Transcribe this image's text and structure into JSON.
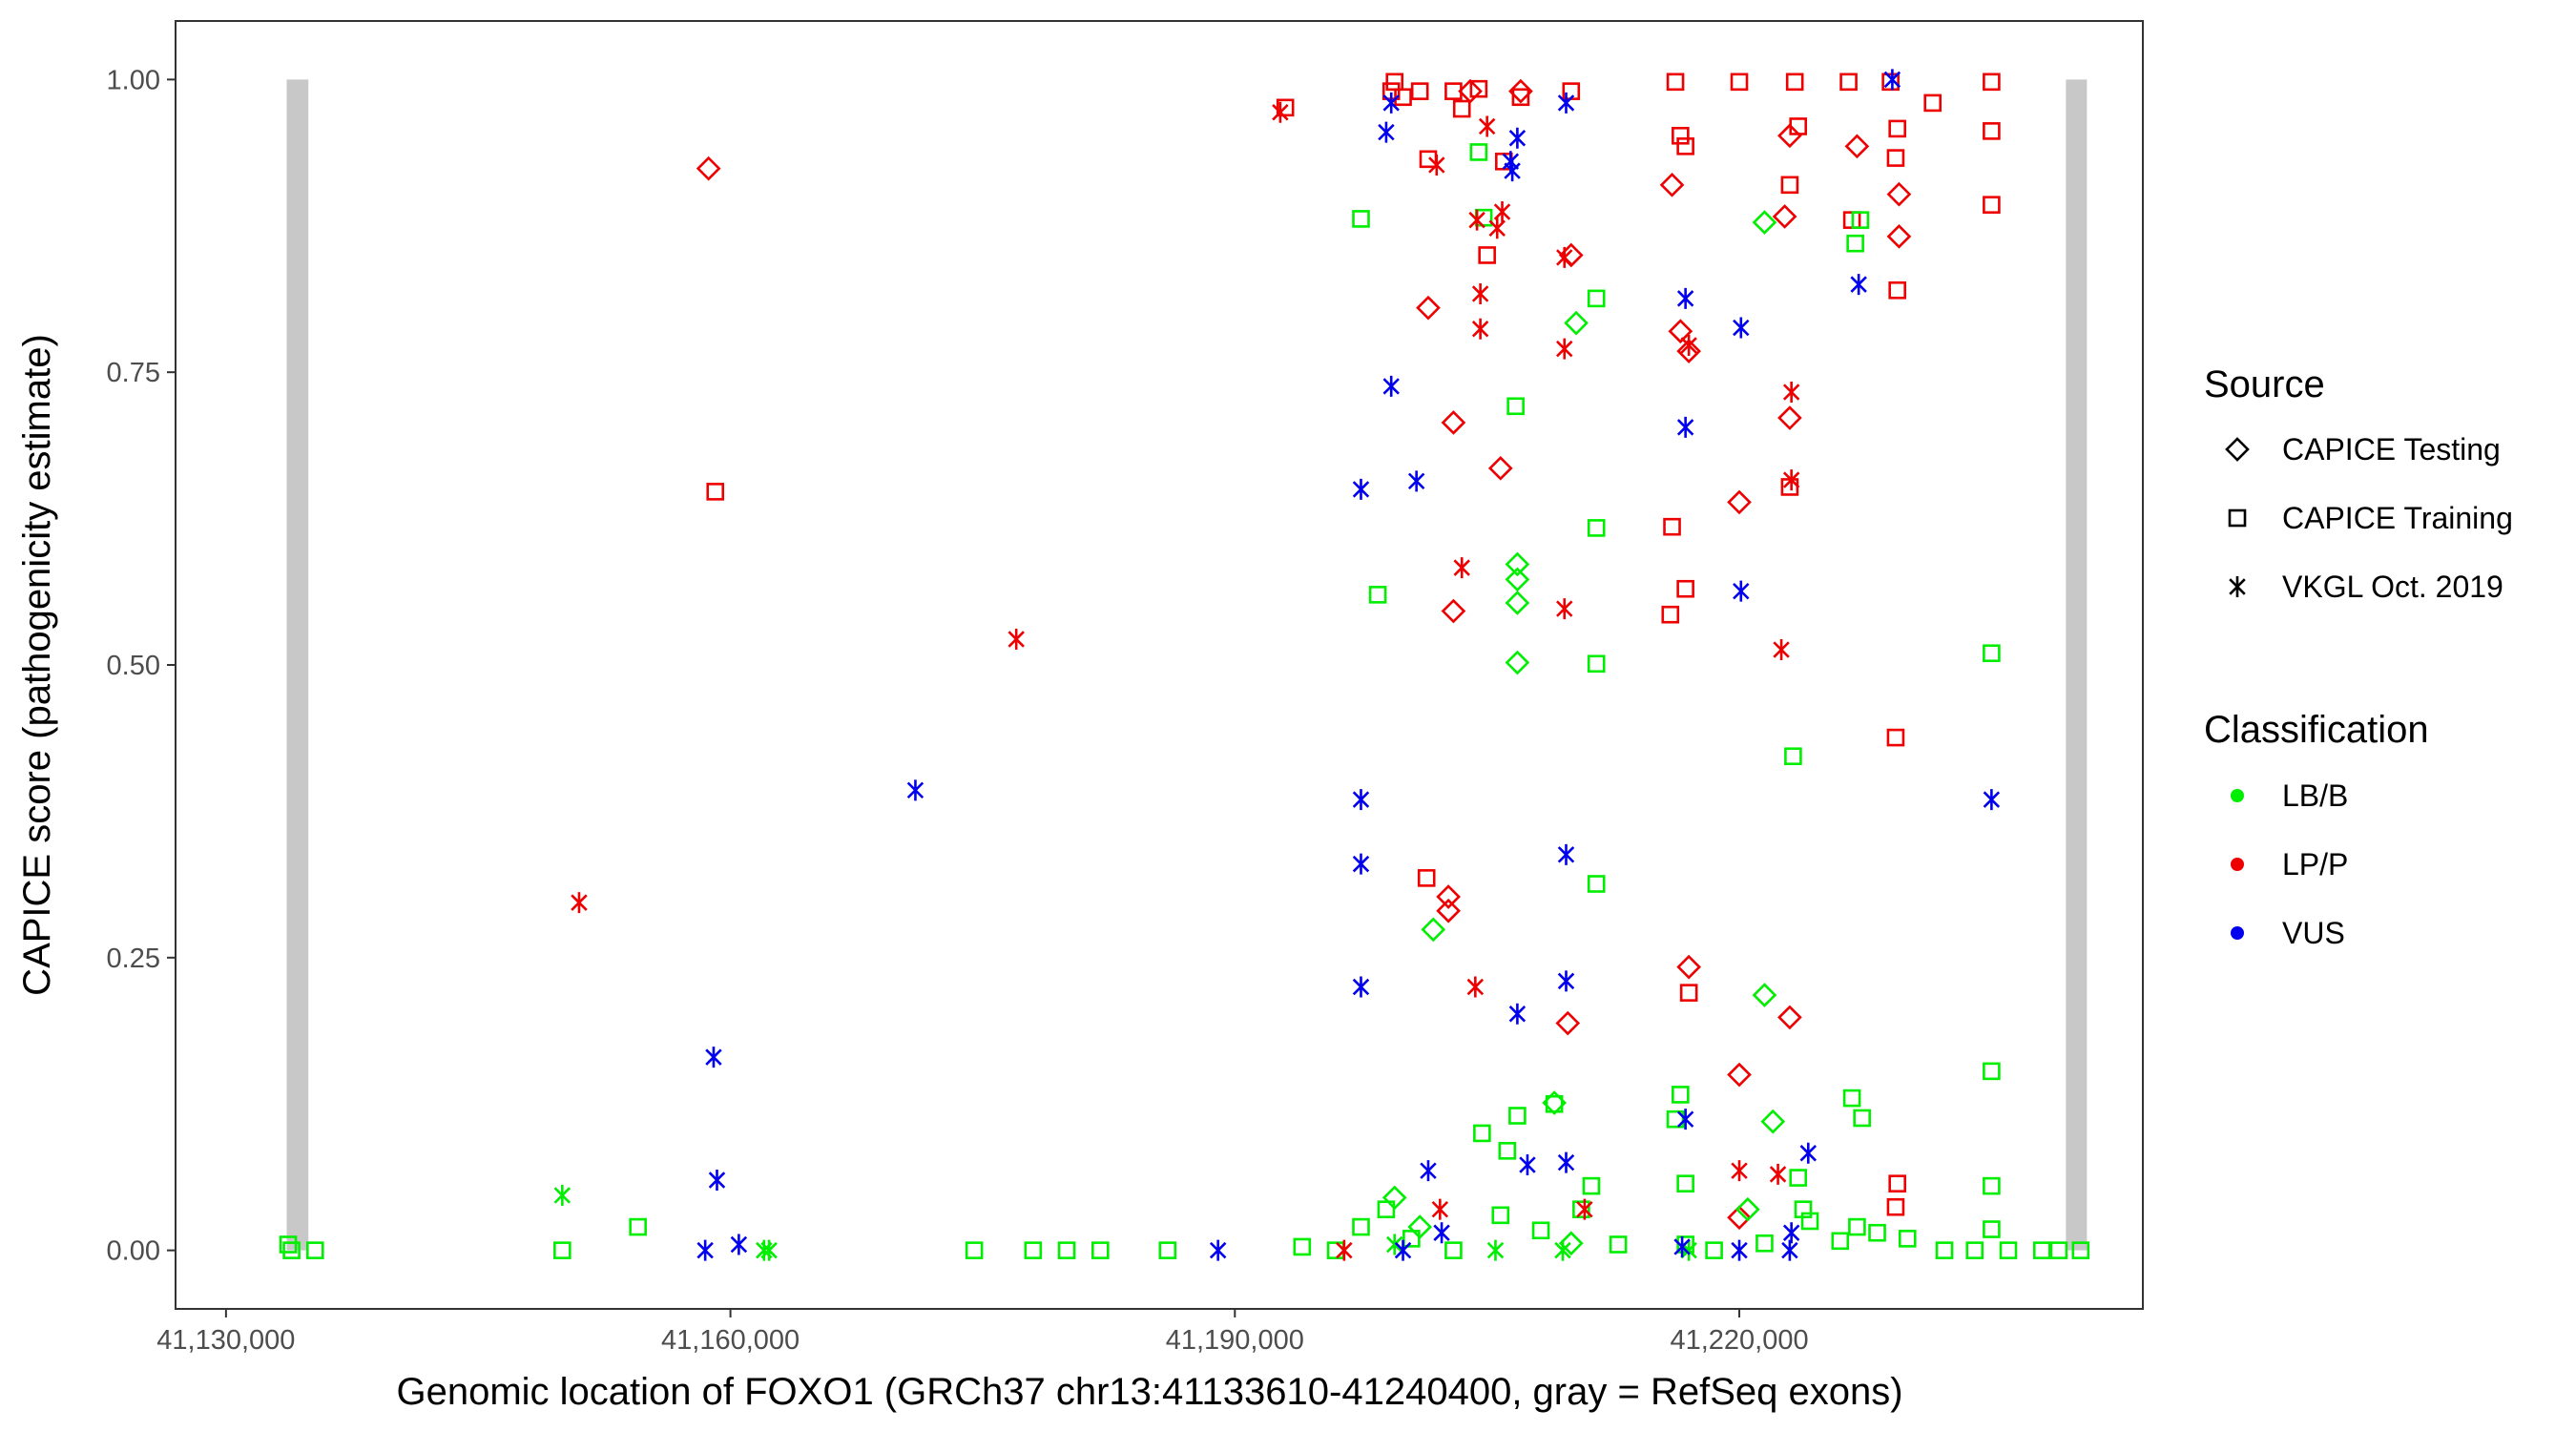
{
  "chart_data": {
    "type": "scatter",
    "title": "",
    "xlabel": "Genomic location of FOXO1 (GRCh37 chr13:41133610-41240400, gray = RefSeq exons)",
    "ylabel": "CAPICE score (pathogenicity estimate)",
    "xlim": [
      41127000,
      41244000
    ],
    "ylim": [
      -0.05,
      1.05
    ],
    "x_ticks": [
      {
        "value": 41130000,
        "label": "41,130,000"
      },
      {
        "value": 41160000,
        "label": "41,160,000"
      },
      {
        "value": 41190000,
        "label": "41,190,000"
      },
      {
        "value": 41220000,
        "label": "41,220,000"
      }
    ],
    "y_ticks": [
      {
        "value": 0,
        "label": "0.00"
      },
      {
        "value": 0.25,
        "label": "0.25"
      },
      {
        "value": 0.5,
        "label": "0.50"
      },
      {
        "value": 0.75,
        "label": "0.75"
      },
      {
        "value": 1.0,
        "label": "1.00"
      }
    ],
    "exons": [
      {
        "start": 41133610,
        "end": 41134900,
        "top": 1.0
      },
      {
        "start": 41239700,
        "end": 41240400,
        "top": 1.0
      }
    ],
    "legend": {
      "source_title": "Source",
      "source_items": [
        {
          "key": "testing",
          "label": "CAPICE Testing"
        },
        {
          "key": "training",
          "label": "CAPICE Training"
        },
        {
          "key": "vkgl",
          "label": "VKGL Oct. 2019"
        }
      ],
      "class_title": "Classification",
      "class_items": [
        {
          "key": "LB/B",
          "label": "LB/B"
        },
        {
          "key": "LP/P",
          "label": "LP/P"
        },
        {
          "key": "VUS",
          "label": "VUS"
        }
      ]
    },
    "colors": {
      "LB/B": "#00ee00",
      "LP/P": "#ee0000",
      "VUS": "#0000ee",
      "exon": "#c8c8c8"
    },
    "series": [
      {
        "name": "CAPICE Testing / LP/P",
        "source": "testing",
        "classification": "LP/P",
        "points": [
          [
            41158700,
            0.924
          ],
          [
            41201500,
            0.805
          ],
          [
            41203000,
            0.707
          ],
          [
            41205800,
            0.668
          ],
          [
            41203000,
            0.546
          ],
          [
            41202700,
            0.302
          ],
          [
            41202700,
            0.29
          ],
          [
            41210000,
            0.85
          ],
          [
            41216000,
            0.91
          ],
          [
            41216500,
            0.785
          ],
          [
            41217000,
            0.768
          ],
          [
            41217000,
            0.242
          ],
          [
            41220000,
            0.639
          ],
          [
            41220000,
            0.15
          ],
          [
            41220000,
            0.028
          ],
          [
            41223000,
            0.952
          ],
          [
            41222700,
            0.883
          ],
          [
            41223000,
            0.711
          ],
          [
            41223000,
            0.199
          ],
          [
            41209800,
            0.194
          ],
          [
            41227000,
            0.943
          ],
          [
            41229500,
            0.902
          ],
          [
            41229500,
            0.866
          ],
          [
            41207000,
            0.99
          ],
          [
            41204000,
            0.99
          ]
        ]
      },
      {
        "name": "CAPICE Testing / LB/B",
        "source": "testing",
        "classification": "LB/B",
        "points": [
          [
            41210300,
            0.792
          ],
          [
            41206800,
            0.586
          ],
          [
            41206800,
            0.573
          ],
          [
            41206800,
            0.553
          ],
          [
            41206800,
            0.502
          ],
          [
            41201800,
            0.274
          ],
          [
            41221500,
            0.878
          ],
          [
            41221500,
            0.218
          ],
          [
            41222000,
            0.11
          ],
          [
            41209000,
            0.126
          ],
          [
            41199500,
            0.045
          ],
          [
            41201000,
            0.02
          ],
          [
            41210000,
            0.006
          ],
          [
            41220500,
            0.035
          ]
        ]
      },
      {
        "name": "CAPICE Training / LP/P",
        "source": "training",
        "classification": "LP/P",
        "points": [
          [
            41159100,
            0.648
          ],
          [
            41193000,
            0.976
          ],
          [
            41199500,
            0.998
          ],
          [
            41200000,
            0.985
          ],
          [
            41201000,
            0.99
          ],
          [
            41201500,
            0.932
          ],
          [
            41203000,
            0.99
          ],
          [
            41204500,
            0.992
          ],
          [
            41205000,
            0.85
          ],
          [
            41206000,
            0.93
          ],
          [
            41207000,
            0.985
          ],
          [
            41210000,
            0.99
          ],
          [
            41216200,
            0.998
          ],
          [
            41216500,
            0.952
          ],
          [
            41216800,
            0.943
          ],
          [
            41216000,
            0.618
          ],
          [
            41215900,
            0.543
          ],
          [
            41216800,
            0.565
          ],
          [
            41217000,
            0.22
          ],
          [
            41220000,
            0.998
          ],
          [
            41223300,
            0.998
          ],
          [
            41223000,
            0.91
          ],
          [
            41223000,
            0.652
          ],
          [
            41226500,
            0.998
          ],
          [
            41226700,
            0.88
          ],
          [
            41229000,
            0.998
          ],
          [
            41229400,
            0.958
          ],
          [
            41229300,
            0.933
          ],
          [
            41229400,
            0.82
          ],
          [
            41229300,
            0.438
          ],
          [
            41229400,
            0.057
          ],
          [
            41229300,
            0.037
          ],
          [
            41231500,
            0.98
          ],
          [
            41235000,
            0.998
          ],
          [
            41235000,
            0.956
          ],
          [
            41235000,
            0.893
          ],
          [
            41201400,
            0.318
          ],
          [
            41223500,
            0.96
          ],
          [
            41203500,
            0.975
          ],
          [
            41199300,
            0.99
          ]
        ]
      },
      {
        "name": "CAPICE Training / LB/B",
        "source": "training",
        "classification": "LB/B",
        "points": [
          [
            41133700,
            0.005
          ],
          [
            41133900,
            0.0
          ],
          [
            41135300,
            0.0
          ],
          [
            41150000,
            0.0
          ],
          [
            41154500,
            0.02
          ],
          [
            41174500,
            0.0
          ],
          [
            41178000,
            0.0
          ],
          [
            41180000,
            0.0
          ],
          [
            41182000,
            0.0
          ],
          [
            41186000,
            0.0
          ],
          [
            41194000,
            0.003
          ],
          [
            41196000,
            0.0
          ],
          [
            41197500,
            0.881
          ],
          [
            41198500,
            0.56
          ],
          [
            41197500,
            0.02
          ],
          [
            41199000,
            0.035
          ],
          [
            41204500,
            0.938
          ],
          [
            41204800,
            0.882
          ],
          [
            41206700,
            0.721
          ],
          [
            41211500,
            0.813
          ],
          [
            41211500,
            0.617
          ],
          [
            41211500,
            0.501
          ],
          [
            41211500,
            0.313
          ],
          [
            41204700,
            0.1
          ],
          [
            41206200,
            0.085
          ],
          [
            41206800,
            0.115
          ],
          [
            41209000,
            0.125
          ],
          [
            41211200,
            0.055
          ],
          [
            41208200,
            0.017
          ],
          [
            41200500,
            0.01
          ],
          [
            41216500,
            0.133
          ],
          [
            41216200,
            0.112
          ],
          [
            41216800,
            0.057
          ],
          [
            41216800,
            0.005
          ],
          [
            41221500,
            0.006
          ],
          [
            41223200,
            0.422
          ],
          [
            41223500,
            0.062
          ],
          [
            41226700,
            0.13
          ],
          [
            41227300,
            0.113
          ],
          [
            41227000,
            0.02
          ],
          [
            41224200,
            0.025
          ],
          [
            41230000,
            0.01
          ],
          [
            41234000,
            0.0
          ],
          [
            41235000,
            0.51
          ],
          [
            41235000,
            0.153
          ],
          [
            41235000,
            0.055
          ],
          [
            41235000,
            0.018
          ],
          [
            41236000,
            0.0
          ],
          [
            41238000,
            0.0
          ],
          [
            41239000,
            0.0
          ],
          [
            41240300,
            0.0
          ],
          [
            41226900,
            0.86
          ],
          [
            41227200,
            0.88
          ],
          [
            41203000,
            0.0
          ],
          [
            41205800,
            0.03
          ],
          [
            41210600,
            0.035
          ],
          [
            41212800,
            0.005
          ],
          [
            41218500,
            0.0
          ],
          [
            41223800,
            0.035
          ],
          [
            41226000,
            0.008
          ],
          [
            41228200,
            0.015
          ],
          [
            41232200,
            0.0
          ]
        ]
      },
      {
        "name": "VKGL Oct. 2019 / LP/P",
        "source": "vkgl",
        "classification": "LP/P",
        "points": [
          [
            41151000,
            0.297
          ],
          [
            41177000,
            0.522
          ],
          [
            41192700,
            0.972
          ],
          [
            41196500,
            0.0
          ],
          [
            41202000,
            0.927
          ],
          [
            41203500,
            0.583
          ],
          [
            41204400,
            0.88
          ],
          [
            41204600,
            0.817
          ],
          [
            41204600,
            0.787
          ],
          [
            41204300,
            0.225
          ],
          [
            41205600,
            0.873
          ],
          [
            41205900,
            0.887
          ],
          [
            41209600,
            0.848
          ],
          [
            41209600,
            0.77
          ],
          [
            41209600,
            0.548
          ],
          [
            41210800,
            0.035
          ],
          [
            41217000,
            0.773
          ],
          [
            41220000,
            0.068
          ],
          [
            41222500,
            0.513
          ],
          [
            41223100,
            0.733
          ],
          [
            41223100,
            0.658
          ],
          [
            41222300,
            0.065
          ],
          [
            41202200,
            0.035
          ],
          [
            41205000,
            0.96
          ]
        ]
      },
      {
        "name": "VKGL Oct. 2019 / LB/B",
        "source": "vkgl",
        "classification": "LB/B",
        "points": [
          [
            41150000,
            0.047
          ],
          [
            41162000,
            0.0
          ],
          [
            41162300,
            0.0
          ],
          [
            41199500,
            0.005
          ],
          [
            41205500,
            0.0
          ],
          [
            41209500,
            0.0
          ],
          [
            41217000,
            0.0
          ]
        ]
      },
      {
        "name": "VKGL Oct. 2019 / VUS",
        "source": "vkgl",
        "classification": "VUS",
        "points": [
          [
            41158500,
            0.0
          ],
          [
            41159000,
            0.165
          ],
          [
            41159200,
            0.06
          ],
          [
            41160500,
            0.005
          ],
          [
            41171000,
            0.393
          ],
          [
            41189000,
            0.0
          ],
          [
            41197500,
            0.385
          ],
          [
            41197500,
            0.33
          ],
          [
            41197500,
            0.225
          ],
          [
            41197500,
            0.65
          ],
          [
            41199000,
            0.955
          ],
          [
            41199300,
            0.98
          ],
          [
            41199300,
            0.738
          ],
          [
            41200800,
            0.657
          ],
          [
            41200000,
            0.0
          ],
          [
            41201500,
            0.068
          ],
          [
            41202300,
            0.015
          ],
          [
            41206400,
            0.93
          ],
          [
            41206500,
            0.922
          ],
          [
            41206800,
            0.95
          ],
          [
            41206800,
            0.202
          ],
          [
            41207400,
            0.073
          ],
          [
            41209700,
            0.98
          ],
          [
            41209700,
            0.338
          ],
          [
            41209700,
            0.23
          ],
          [
            41209700,
            0.075
          ],
          [
            41216800,
            0.813
          ],
          [
            41216800,
            0.703
          ],
          [
            41216800,
            0.112
          ],
          [
            41216600,
            0.003
          ],
          [
            41220100,
            0.788
          ],
          [
            41220100,
            0.563
          ],
          [
            41223100,
            0.015
          ],
          [
            41224100,
            0.083
          ],
          [
            41227100,
            0.825
          ],
          [
            41229100,
            1.0
          ],
          [
            41235000,
            0.385
          ],
          [
            41220000,
            0.0
          ],
          [
            41223000,
            0.0
          ]
        ]
      }
    ]
  }
}
